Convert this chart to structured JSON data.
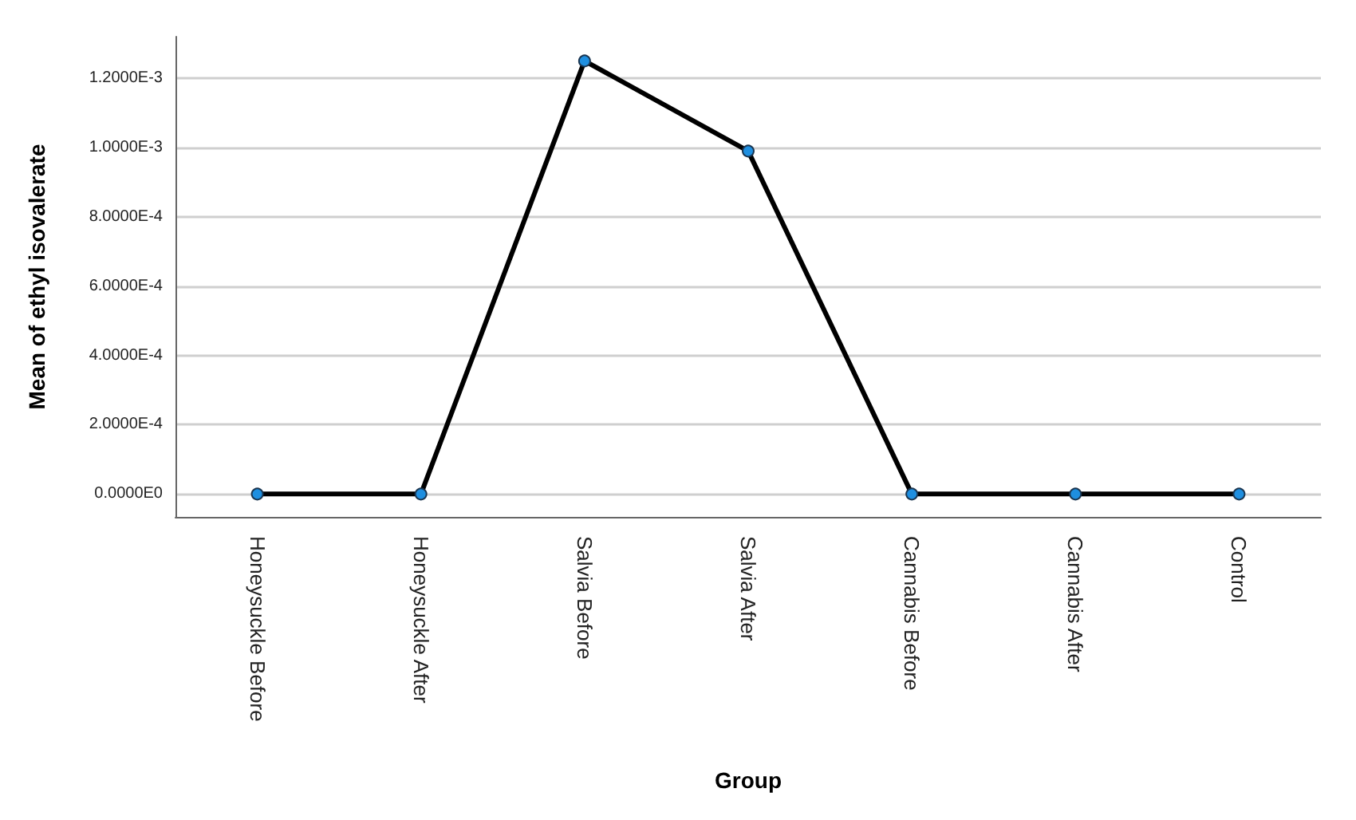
{
  "chart_data": {
    "type": "line",
    "xlabel": "Group",
    "ylabel": "Mean of ethyl isovalerate",
    "categories": [
      "Honeysuckle Before",
      "Honeysuckle After",
      "Salvia Before",
      "Salvia After",
      "Cannabis Before",
      "Cannabis After",
      "Control"
    ],
    "series": [
      {
        "color": "#000000",
        "colors": [
          "#1f8fe0",
          "#1f8fe0",
          "#1f8fe0",
          "#1f8fe0",
          "#1f8fe0",
          "#1f8fe0",
          "#1f8fe0"
        ],
        "values": [
          0,
          0,
          0.00125,
          0.00099,
          0,
          0,
          0
        ]
      }
    ],
    "ylim": [
      -6.6e-05,
      0.00132
    ],
    "yticks": [
      {
        "value": 0,
        "label": "0.0000E0"
      },
      {
        "value": 0.0002,
        "label": "2.0000E-4"
      },
      {
        "value": 0.0004,
        "label": "4.0000E-4"
      },
      {
        "value": 0.0006,
        "label": "6.0000E-4"
      },
      {
        "value": 0.0008,
        "label": "8.0000E-4"
      },
      {
        "value": 0.001,
        "label": "1.0000E-3"
      },
      {
        "value": 0.0012,
        "label": "1.2000E-3"
      }
    ],
    "grid": "y",
    "marker": "circle",
    "line_style": "solid"
  }
}
